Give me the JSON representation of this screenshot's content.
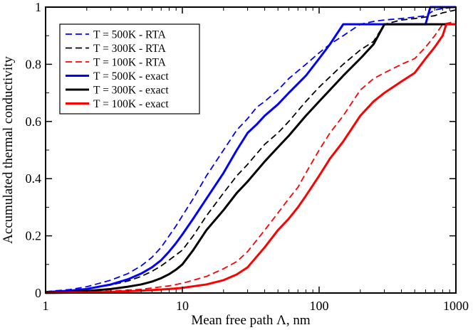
{
  "chart_data": {
    "type": "line",
    "title": "",
    "xlabel": "Mean free path Λ, nm",
    "ylabel": "Accumulated thermal conductivity",
    "xscale": "log",
    "xlim": [
      1,
      1000
    ],
    "ylim": [
      0,
      1
    ],
    "xticks": [
      {
        "value": 1,
        "label": "1"
      },
      {
        "value": 10,
        "label": "10"
      },
      {
        "value": 100,
        "label": "100"
      },
      {
        "value": 1000,
        "label": "1000"
      }
    ],
    "yticks": [
      {
        "value": 0,
        "label": "0"
      },
      {
        "value": 0.2,
        "label": "0.2"
      },
      {
        "value": 0.4,
        "label": "0.4"
      },
      {
        "value": 0.6,
        "label": "0.6"
      },
      {
        "value": 0.8,
        "label": "0.8"
      },
      {
        "value": 1,
        "label": "1"
      }
    ],
    "grid": false,
    "legend_position": "top-left",
    "series": [
      {
        "name": "T = 500K - RTA",
        "color": "#0000ff",
        "style": "dashed",
        "points": [
          [
            1,
            0.005
          ],
          [
            1.5,
            0.012
          ],
          [
            2,
            0.022
          ],
          [
            3,
            0.045
          ],
          [
            4,
            0.068
          ],
          [
            5,
            0.095
          ],
          [
            6,
            0.125
          ],
          [
            7,
            0.16
          ],
          [
            8,
            0.2
          ],
          [
            9,
            0.235
          ],
          [
            10,
            0.27
          ],
          [
            12,
            0.33
          ],
          [
            15,
            0.41
          ],
          [
            20,
            0.5
          ],
          [
            25,
            0.57
          ],
          [
            30,
            0.61
          ],
          [
            35,
            0.65
          ],
          [
            40,
            0.67
          ],
          [
            50,
            0.71
          ],
          [
            60,
            0.75
          ],
          [
            80,
            0.8
          ],
          [
            100,
            0.84
          ],
          [
            120,
            0.87
          ],
          [
            150,
            0.9
          ],
          [
            200,
            0.94
          ],
          [
            250,
            0.95
          ],
          [
            300,
            0.955
          ],
          [
            400,
            0.96
          ],
          [
            500,
            0.965
          ],
          [
            600,
            0.97
          ],
          [
            700,
            0.99
          ],
          [
            800,
            0.995
          ],
          [
            1000,
            1
          ]
        ]
      },
      {
        "name": "T = 300K - RTA",
        "color": "#000000",
        "style": "dashed",
        "points": [
          [
            1,
            0.004
          ],
          [
            1.5,
            0.008
          ],
          [
            2,
            0.014
          ],
          [
            3,
            0.028
          ],
          [
            4,
            0.042
          ],
          [
            5,
            0.058
          ],
          [
            6,
            0.076
          ],
          [
            7,
            0.095
          ],
          [
            8,
            0.115
          ],
          [
            10,
            0.15
          ],
          [
            12,
            0.2
          ],
          [
            15,
            0.27
          ],
          [
            20,
            0.35
          ],
          [
            25,
            0.41
          ],
          [
            30,
            0.45
          ],
          [
            40,
            0.52
          ],
          [
            50,
            0.56
          ],
          [
            60,
            0.6
          ],
          [
            80,
            0.67
          ],
          [
            100,
            0.72
          ],
          [
            150,
            0.8
          ],
          [
            200,
            0.85
          ],
          [
            250,
            0.88
          ],
          [
            300,
            0.94
          ],
          [
            400,
            0.955
          ],
          [
            500,
            0.96
          ],
          [
            700,
            0.97
          ],
          [
            800,
            0.98
          ],
          [
            1000,
            0.99
          ]
        ]
      },
      {
        "name": "T = 100K - RTA",
        "color": "#ff0000",
        "style": "dashed",
        "points": [
          [
            1,
            0.001
          ],
          [
            2,
            0.004
          ],
          [
            3,
            0.007
          ],
          [
            5,
            0.013
          ],
          [
            8,
            0.025
          ],
          [
            10,
            0.034
          ],
          [
            15,
            0.058
          ],
          [
            20,
            0.085
          ],
          [
            25,
            0.11
          ],
          [
            30,
            0.145
          ],
          [
            40,
            0.22
          ],
          [
            50,
            0.28
          ],
          [
            60,
            0.33
          ],
          [
            70,
            0.37
          ],
          [
            80,
            0.42
          ],
          [
            100,
            0.5
          ],
          [
            120,
            0.56
          ],
          [
            150,
            0.62
          ],
          [
            200,
            0.71
          ],
          [
            250,
            0.75
          ],
          [
            300,
            0.77
          ],
          [
            400,
            0.8
          ],
          [
            500,
            0.82
          ],
          [
            600,
            0.86
          ],
          [
            700,
            0.9
          ],
          [
            800,
            0.94
          ],
          [
            1000,
            0.95
          ]
        ]
      },
      {
        "name": "T = 500K - exact",
        "color": "#0000ff",
        "style": "solid",
        "points": [
          [
            1,
            0.003
          ],
          [
            1.5,
            0.008
          ],
          [
            2,
            0.014
          ],
          [
            3,
            0.03
          ],
          [
            4,
            0.048
          ],
          [
            5,
            0.068
          ],
          [
            6,
            0.09
          ],
          [
            7,
            0.115
          ],
          [
            8,
            0.145
          ],
          [
            9,
            0.175
          ],
          [
            10,
            0.205
          ],
          [
            12,
            0.26
          ],
          [
            15,
            0.33
          ],
          [
            20,
            0.42
          ],
          [
            25,
            0.5
          ],
          [
            30,
            0.56
          ],
          [
            35,
            0.59
          ],
          [
            40,
            0.62
          ],
          [
            50,
            0.66
          ],
          [
            60,
            0.7
          ],
          [
            80,
            0.76
          ],
          [
            100,
            0.82
          ],
          [
            120,
            0.87
          ],
          [
            150,
            0.94
          ],
          [
            200,
            0.94
          ],
          [
            300,
            0.94
          ],
          [
            400,
            0.94
          ],
          [
            600,
            0.94
          ],
          [
            650,
            1.0
          ],
          [
            1000,
            1.0
          ]
        ]
      },
      {
        "name": "T = 300K - exact",
        "color": "#000000",
        "style": "solid",
        "points": [
          [
            1,
            0.002
          ],
          [
            1.5,
            0.004
          ],
          [
            2,
            0.007
          ],
          [
            3,
            0.014
          ],
          [
            4,
            0.022
          ],
          [
            5,
            0.03
          ],
          [
            6,
            0.04
          ],
          [
            7,
            0.052
          ],
          [
            8,
            0.066
          ],
          [
            9,
            0.082
          ],
          [
            10,
            0.1
          ],
          [
            12,
            0.15
          ],
          [
            15,
            0.22
          ],
          [
            20,
            0.29
          ],
          [
            25,
            0.35
          ],
          [
            30,
            0.39
          ],
          [
            40,
            0.46
          ],
          [
            50,
            0.51
          ],
          [
            60,
            0.55
          ],
          [
            80,
            0.62
          ],
          [
            100,
            0.67
          ],
          [
            150,
            0.76
          ],
          [
            200,
            0.82
          ],
          [
            250,
            0.87
          ],
          [
            300,
            0.94
          ],
          [
            400,
            0.94
          ],
          [
            600,
            0.94
          ],
          [
            800,
            0.94
          ],
          [
            1000,
            0.94
          ]
        ]
      },
      {
        "name": "T = 100K - exact",
        "color": "#ff0000",
        "style": "solid",
        "points": [
          [
            1,
            0.0
          ],
          [
            2,
            0.002
          ],
          [
            3,
            0.004
          ],
          [
            5,
            0.008
          ],
          [
            8,
            0.014
          ],
          [
            10,
            0.018
          ],
          [
            15,
            0.03
          ],
          [
            20,
            0.045
          ],
          [
            25,
            0.065
          ],
          [
            30,
            0.09
          ],
          [
            40,
            0.16
          ],
          [
            50,
            0.22
          ],
          [
            60,
            0.26
          ],
          [
            70,
            0.3
          ],
          [
            80,
            0.34
          ],
          [
            100,
            0.41
          ],
          [
            120,
            0.47
          ],
          [
            150,
            0.53
          ],
          [
            200,
            0.62
          ],
          [
            250,
            0.67
          ],
          [
            300,
            0.7
          ],
          [
            400,
            0.74
          ],
          [
            500,
            0.77
          ],
          [
            600,
            0.82
          ],
          [
            700,
            0.86
          ],
          [
            800,
            0.9
          ],
          [
            850,
            0.94
          ],
          [
            1000,
            0.94
          ]
        ]
      }
    ]
  }
}
